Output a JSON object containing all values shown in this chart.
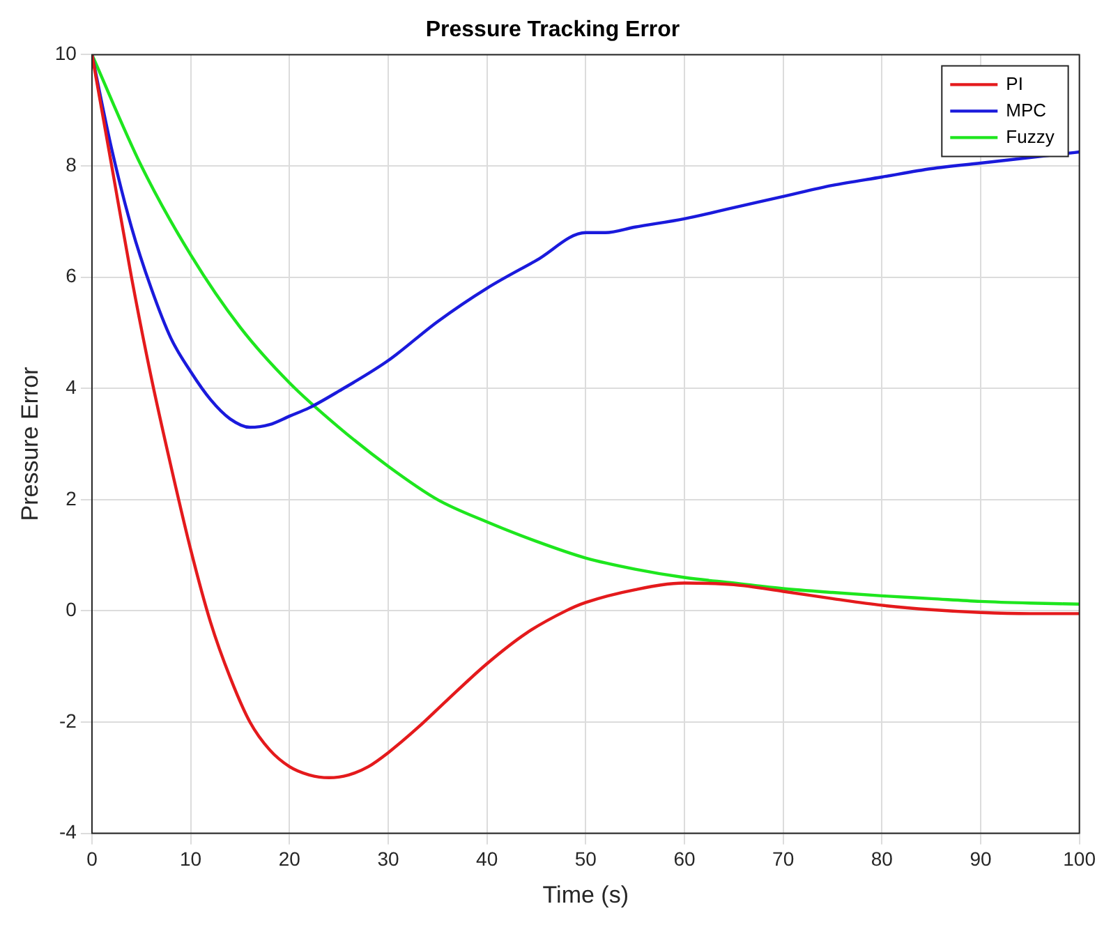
{
  "chart_data": {
    "type": "line",
    "title": "Pressure Tracking Error",
    "xlabel": "Time (s)",
    "ylabel": "Pressure Error",
    "xlim": [
      0,
      100
    ],
    "xticks": [
      0,
      10,
      20,
      30,
      40,
      50,
      60,
      70,
      80,
      90,
      100
    ],
    "ylim": [
      -4,
      10
    ],
    "yticks": [
      -4,
      -2,
      0,
      2,
      4,
      6,
      8,
      10
    ],
    "grid": true,
    "legend": "top right",
    "marker": "none",
    "line_style": "solid",
    "series": [
      {
        "name": "PI",
        "color": "#e41a1c",
        "x": [
          0,
          2,
          4,
          6,
          8,
          10,
          12,
          14,
          16,
          18,
          20,
          22,
          24,
          26,
          28,
          30,
          33,
          36,
          40,
          44,
          48,
          50,
          55,
          60,
          65,
          70,
          75,
          80,
          85,
          90,
          95,
          100
        ],
        "values": [
          10,
          8,
          6,
          4.2,
          2.6,
          1.1,
          -0.2,
          -1.2,
          -2,
          -2.5,
          -2.8,
          -2.95,
          -3,
          -2.95,
          -2.8,
          -2.55,
          -2.1,
          -1.6,
          -0.95,
          -0.4,
          0,
          0.15,
          0.38,
          0.5,
          0.47,
          0.35,
          0.22,
          0.1,
          0.02,
          -0.03,
          -0.05,
          -0.05
        ]
      },
      {
        "name": "MPC",
        "color": "#1a1adc",
        "x": [
          0,
          2,
          4,
          6,
          8,
          10,
          12,
          14,
          16,
          18,
          20,
          22,
          25,
          30,
          35,
          40,
          45,
          50,
          52,
          55,
          60,
          65,
          70,
          75,
          80,
          85,
          90,
          95,
          100
        ],
        "values": [
          10,
          8.3,
          6.9,
          5.8,
          4.9,
          4.3,
          3.8,
          3.45,
          3.3,
          3.35,
          3.5,
          3.65,
          3.95,
          4.5,
          5.2,
          5.8,
          6.3,
          6.8,
          6.8,
          6.9,
          7.05,
          7.25,
          7.45,
          7.65,
          7.8,
          7.95,
          8.05,
          8.15,
          8.25
        ]
      },
      {
        "name": "Fuzzy",
        "color": "#1ee61e",
        "x": [
          0,
          5,
          10,
          15,
          20,
          25,
          30,
          35,
          40,
          45,
          50,
          55,
          60,
          65,
          70,
          75,
          80,
          85,
          90,
          95,
          100
        ],
        "values": [
          10,
          8,
          6.4,
          5.1,
          4.1,
          3.3,
          2.6,
          2,
          1.6,
          1.25,
          0.95,
          0.75,
          0.6,
          0.5,
          0.4,
          0.33,
          0.27,
          0.22,
          0.17,
          0.14,
          0.12
        ]
      }
    ]
  }
}
